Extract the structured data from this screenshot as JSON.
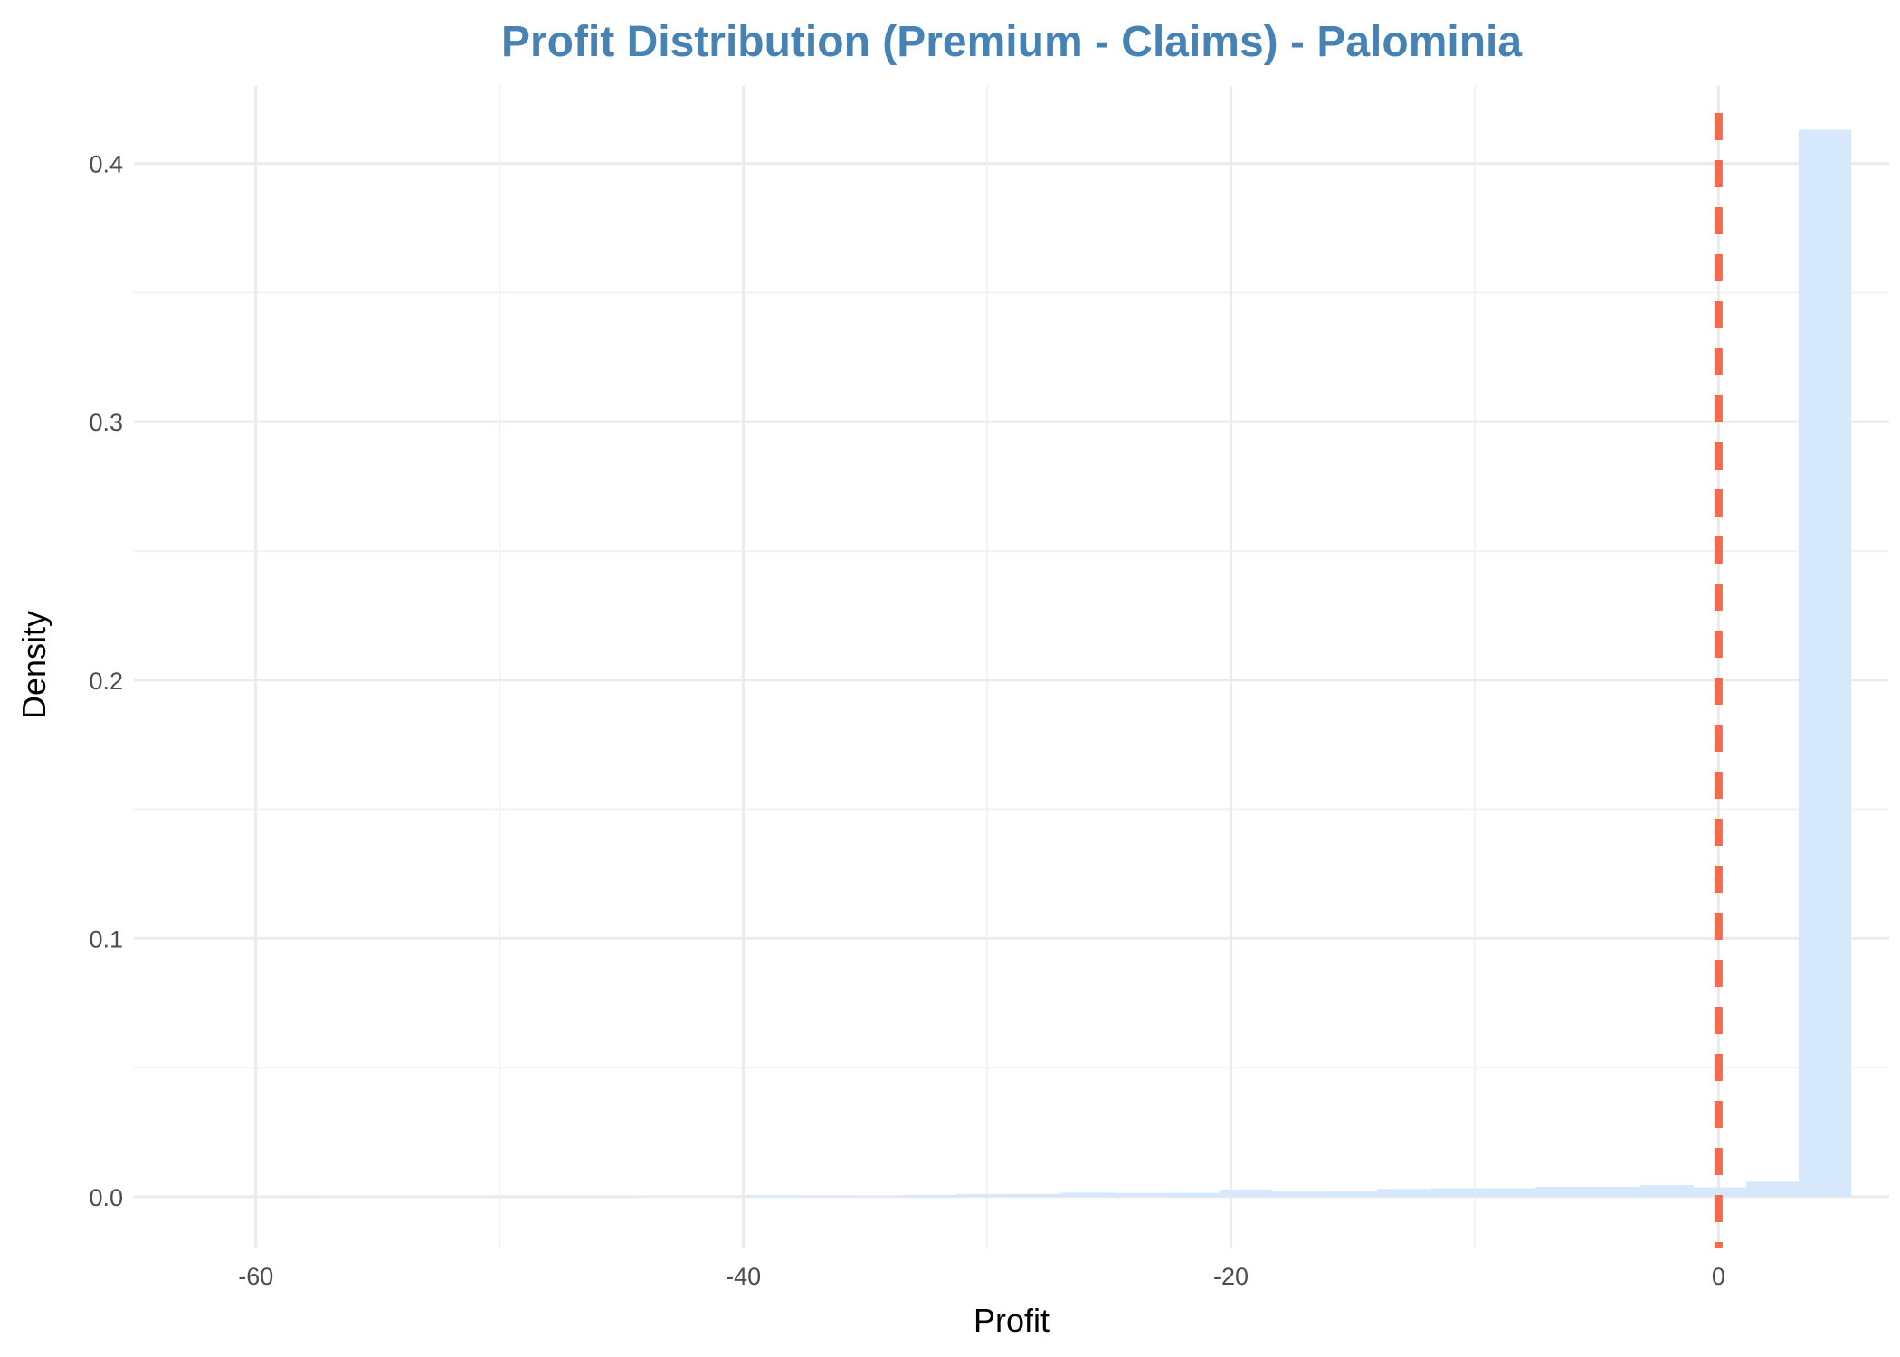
{
  "chart_data": {
    "type": "bar",
    "title": "Profit Distribution (Premium - Claims) - Palominia",
    "xlabel": "Profit",
    "ylabel": "Density",
    "xlim": [
      -65,
      7
    ],
    "ylim": [
      -0.02,
      0.43
    ],
    "xticks": [
      {
        "value": -60,
        "label": "-60"
      },
      {
        "value": -40,
        "label": "-40"
      },
      {
        "value": -20,
        "label": "-20"
      },
      {
        "value": 0,
        "label": "0"
      }
    ],
    "xticks_minor": [
      -50,
      -30,
      -10
    ],
    "yticks": [
      {
        "value": 0.0,
        "label": "0.0"
      },
      {
        "value": 0.1,
        "label": "0.1"
      },
      {
        "value": 0.2,
        "label": "0.2"
      },
      {
        "value": 0.3,
        "label": "0.3"
      },
      {
        "value": 0.4,
        "label": "0.4"
      }
    ],
    "yticks_minor": [
      0.05,
      0.15,
      0.25,
      0.35
    ],
    "bin_width": 2.16,
    "bins": [
      {
        "start": -59.35,
        "value": 0.0001
      },
      {
        "start": -57.19,
        "value": 0.0
      },
      {
        "start": -55.03,
        "value": 0.0
      },
      {
        "start": -52.87,
        "value": 0.0
      },
      {
        "start": -50.71,
        "value": 0.0001
      },
      {
        "start": -48.55,
        "value": 0.0001
      },
      {
        "start": -46.39,
        "value": 0.0001
      },
      {
        "start": -44.23,
        "value": 0.0002
      },
      {
        "start": -42.07,
        "value": 0.0002
      },
      {
        "start": -39.91,
        "value": 0.0006
      },
      {
        "start": -37.75,
        "value": 0.0005
      },
      {
        "start": -35.59,
        "value": 0.0004
      },
      {
        "start": -33.43,
        "value": 0.0007
      },
      {
        "start": -31.27,
        "value": 0.001
      },
      {
        "start": -29.11,
        "value": 0.0011
      },
      {
        "start": -26.95,
        "value": 0.0016
      },
      {
        "start": -24.79,
        "value": 0.0014
      },
      {
        "start": -22.63,
        "value": 0.0015
      },
      {
        "start": -20.47,
        "value": 0.0028
      },
      {
        "start": -18.31,
        "value": 0.0022
      },
      {
        "start": -16.15,
        "value": 0.002
      },
      {
        "start": -13.99,
        "value": 0.003
      },
      {
        "start": -11.83,
        "value": 0.0033
      },
      {
        "start": -9.67,
        "value": 0.0033
      },
      {
        "start": -7.51,
        "value": 0.0038
      },
      {
        "start": -5.35,
        "value": 0.0038
      },
      {
        "start": -3.19,
        "value": 0.0045
      },
      {
        "start": -1.03,
        "value": 0.0036
      },
      {
        "start": 1.13,
        "value": 0.0058
      },
      {
        "start": 3.29,
        "value": 0.413
      }
    ],
    "reference_line": {
      "x": 0,
      "style": "dashed"
    },
    "grid": true,
    "legend": "none"
  },
  "colors": {
    "title": "#4682B4",
    "bar_fill": "#D6E8FC",
    "reference_line": "#F5694C",
    "grid_major": "#EBEBEB",
    "grid_minor": "#F2F2F2",
    "background": "#FFFFFF"
  }
}
